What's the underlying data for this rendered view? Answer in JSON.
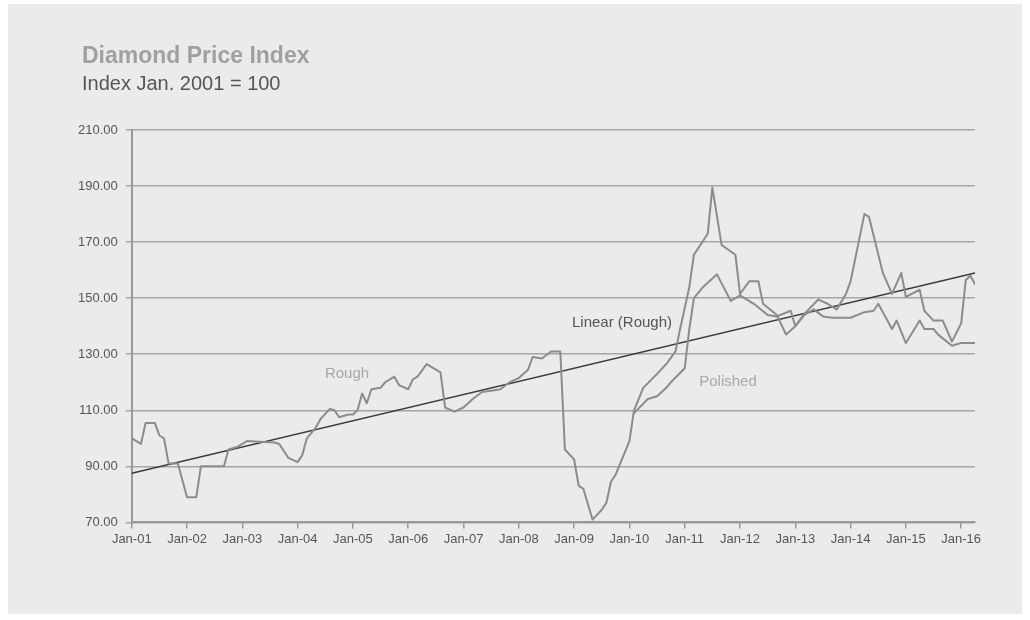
{
  "chart_data": {
    "type": "line",
    "title": "Diamond Price Index",
    "subtitle": "Index Jan. 2001 = 100",
    "xlim": [
      "2001-01",
      "2016-04"
    ],
    "xticks": [
      {
        "value": "2001-01",
        "label": "Jan-01"
      },
      {
        "value": "2002-01",
        "label": "Jan-02"
      },
      {
        "value": "2003-01",
        "label": "Jan-03"
      },
      {
        "value": "2004-01",
        "label": "Jan-04"
      },
      {
        "value": "2005-01",
        "label": "Jan-05"
      },
      {
        "value": "2006-01",
        "label": "Jan-06"
      },
      {
        "value": "2007-01",
        "label": "Jan-07"
      },
      {
        "value": "2008-01",
        "label": "Jan-08"
      },
      {
        "value": "2009-01",
        "label": "Jan-09"
      },
      {
        "value": "2010-01",
        "label": "Jan-10"
      },
      {
        "value": "2011-01",
        "label": "Jan-11"
      },
      {
        "value": "2012-01",
        "label": "Jan-12"
      },
      {
        "value": "2013-01",
        "label": "Jan-13"
      },
      {
        "value": "2014-01",
        "label": "Jan-14"
      },
      {
        "value": "2015-01",
        "label": "Jan-15"
      },
      {
        "value": "2016-01",
        "label": "Jan-16"
      }
    ],
    "ylim": [
      70,
      210
    ],
    "yticks": [
      {
        "value": 70,
        "label": "70.00"
      },
      {
        "value": 90,
        "label": "90.00"
      },
      {
        "value": 110,
        "label": "110.00"
      },
      {
        "value": 130,
        "label": "130.00"
      },
      {
        "value": 150,
        "label": "150.00"
      },
      {
        "value": 170,
        "label": "170.00"
      },
      {
        "value": 190,
        "label": "190.00"
      },
      {
        "value": 210,
        "label": "210.00"
      }
    ],
    "grid": "y",
    "legend": false,
    "marker": "none",
    "line_style": "solid",
    "series": [
      {
        "color": "#8c8c8c",
        "x": [
          "2001-01",
          "2001-03",
          "2001-04",
          "2001-06",
          "2001-07",
          "2001-08",
          "2001-09",
          "2001-11",
          "2002-01",
          "2002-03",
          "2002-04",
          "2002-09",
          "2002-10",
          "2002-12",
          "2003-02",
          "2003-08",
          "2003-09",
          "2003-11",
          "2004-01",
          "2004-02",
          "2004-03",
          "2004-05",
          "2004-06",
          "2004-08",
          "2004-09",
          "2004-10",
          "2004-12",
          "2005-01",
          "2005-02",
          "2005-03",
          "2005-04",
          "2005-05",
          "2005-07",
          "2005-08",
          "2005-10",
          "2005-11",
          "2006-01",
          "2006-02",
          "2006-03",
          "2006-05",
          "2006-06",
          "2006-08",
          "2006-09",
          "2006-11",
          "2007-01",
          "2007-03",
          "2007-05",
          "2007-07",
          "2007-09",
          "2007-11",
          "2008-01",
          "2008-03",
          "2008-04",
          "2008-06",
          "2008-08",
          "2008-10",
          "2008-11",
          "2009-01",
          "2009-02",
          "2009-03",
          "2009-05",
          "2009-07",
          "2009-08",
          "2009-09",
          "2009-10",
          "2010-01",
          "2010-02",
          "2010-04",
          "2010-07",
          "2010-09",
          "2010-11",
          "2010-12",
          "2011-02",
          "2011-03",
          "2011-06",
          "2011-07",
          "2011-09",
          "2011-12",
          "2012-01",
          "2012-03",
          "2012-05",
          "2012-06",
          "2012-09",
          "2012-11",
          "2013-01",
          "2013-03",
          "2013-06",
          "2013-08",
          "2013-10",
          "2013-12",
          "2014-01",
          "2014-04",
          "2014-05",
          "2014-08",
          "2014-10",
          "2014-12",
          "2015-01",
          "2015-04",
          "2015-05",
          "2015-07",
          "2015-09",
          "2015-11",
          "2016-01",
          "2016-02",
          "2016-03",
          "2016-04"
        ],
        "values": [
          100,
          98,
          105.5,
          105.5,
          101,
          100,
          91,
          91,
          79,
          79,
          90,
          90,
          96,
          97,
          99,
          98.5,
          98,
          93,
          91.5,
          94,
          100,
          104,
          107,
          110.5,
          110,
          107.5,
          108.5,
          108.5,
          110,
          116,
          112.5,
          117.5,
          118,
          120,
          122,
          119,
          117.5,
          121,
          122,
          126.5,
          125.5,
          123.5,
          111,
          109.5,
          111,
          114,
          116.5,
          117,
          117.5,
          120,
          121.5,
          124.5,
          129,
          128.5,
          131,
          131,
          96,
          92.5,
          83,
          82,
          71,
          74.5,
          77,
          84.5,
          87,
          99,
          110,
          118,
          123,
          126.5,
          131,
          139,
          154,
          165.5,
          173,
          189.5,
          169,
          165.5,
          151.5,
          156,
          156,
          148,
          144,
          137,
          140,
          144.5,
          149.5,
          148,
          146,
          151.5,
          156,
          180,
          179,
          159,
          151.5,
          159,
          150.5,
          153,
          145.5,
          142,
          142,
          134.5,
          141,
          156.5,
          158,
          155
        ]
      },
      {
        "color": "#8c8c8c",
        "x": [
          "2010-02",
          "2010-05",
          "2010-07",
          "2010-09",
          "2010-10",
          "2011-01",
          "2011-02",
          "2011-03",
          "2011-05",
          "2011-08",
          "2011-11",
          "2012-01",
          "2012-04",
          "2012-07",
          "2012-09",
          "2012-12",
          "2013-01",
          "2013-03",
          "2013-05",
          "2013-07",
          "2013-09",
          "2014-01",
          "2014-04",
          "2014-06",
          "2014-07",
          "2014-10",
          "2014-11",
          "2015-01",
          "2015-04",
          "2015-05",
          "2015-07",
          "2015-08",
          "2015-11",
          "2016-01",
          "2016-04"
        ],
        "values": [
          109,
          114,
          115,
          118,
          120,
          125,
          139,
          150,
          154,
          158.5,
          149,
          151,
          148,
          144,
          143.5,
          145.5,
          140,
          144,
          146,
          143.5,
          143,
          143,
          145,
          145.5,
          148,
          139,
          142,
          134,
          142,
          139,
          139,
          137,
          133,
          134,
          134
        ]
      },
      {
        "type": "line",
        "color": "#3a3a3a",
        "x": [
          "2001-01",
          "2016-04"
        ],
        "values": [
          87.5,
          159
        ]
      }
    ],
    "annotations": [
      "Rough",
      "Polished",
      "Linear (Rough)"
    ]
  }
}
